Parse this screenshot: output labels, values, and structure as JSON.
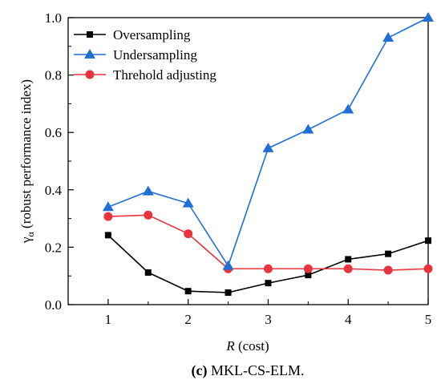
{
  "chart_data": {
    "type": "line",
    "x": [
      1,
      1.5,
      2,
      2.5,
      3,
      3.5,
      4,
      4.5,
      5
    ],
    "series": [
      {
        "name": "Oversampling",
        "color": "#000000",
        "marker": "square",
        "values": [
          0.242,
          0.112,
          0.047,
          0.042,
          0.075,
          0.103,
          0.158,
          0.177,
          0.223
        ]
      },
      {
        "name": "Undersampling",
        "color": "#1f6fd6",
        "marker": "triangle",
        "values": [
          0.34,
          0.395,
          0.353,
          0.135,
          0.545,
          0.61,
          0.68,
          0.93,
          1.0
        ]
      },
      {
        "name": "Threhold adjusting",
        "color": "#e8343c",
        "marker": "circle",
        "values": [
          0.307,
          0.312,
          0.247,
          0.125,
          0.125,
          0.125,
          0.125,
          0.12,
          0.125
        ]
      }
    ],
    "xlim": [
      0.5,
      5
    ],
    "ylim": [
      0,
      1.0
    ],
    "xticks": [
      "1",
      "2",
      "3",
      "4",
      "5"
    ],
    "xtick_values": [
      1,
      2,
      3,
      4,
      5
    ],
    "yticks": [
      "0.0",
      "0.2",
      "0.4",
      "0.6",
      "0.8",
      "1.0"
    ],
    "ytick_values": [
      0,
      0.2,
      0.4,
      0.6,
      0.8,
      1.0
    ],
    "xlabel_var": "R",
    "xlabel_rest": " (cost)",
    "ylabel_sym": "γ",
    "ylabel_sub": "α",
    "ylabel_rest": " (robust performance index)",
    "legend_position": "top-left",
    "grid": false
  },
  "caption": {
    "label": "(c)",
    "text": " MKL-CS-ELM."
  }
}
